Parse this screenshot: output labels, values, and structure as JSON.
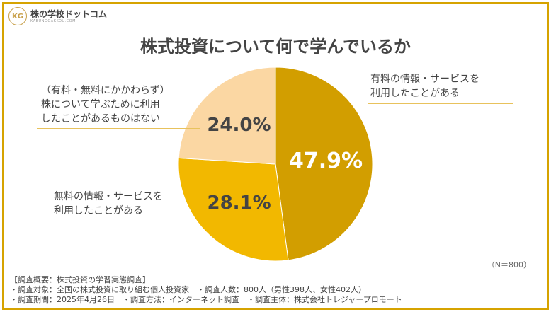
{
  "logo": {
    "mark": "KG",
    "name": "株の学校ドットコム",
    "url": "KABUNOGAKKOU.COM"
  },
  "title": "株式投資について何で学んでいるか",
  "chart_data": {
    "type": "pie",
    "title": "株式投資について何で学んでいるか",
    "slices": [
      {
        "label": "有料の情報・サービスを\n利用したことがある",
        "value": 47.9,
        "display": "47.9%",
        "color": "#d29e00",
        "text_color": "#ffffff"
      },
      {
        "label": "無料の情報・サービスを\n利用したことがある",
        "value": 28.1,
        "display": "28.1%",
        "color": "#f2b800",
        "text_color": "#444444"
      },
      {
        "label": "（有料・無料にかかわらず）\n株について学ぶために利用\nしたことがあるものはない",
        "value": 24.0,
        "display": "24.0%",
        "color": "#fbd7a3",
        "text_color": "#444444"
      }
    ],
    "start_angle_deg": 0,
    "direction": "clockwise"
  },
  "n_note": "（N＝800）",
  "footer": [
    "【調査概要：株式投資の学習実態調査】",
    "・調査対象：全国の株式投資に取り組む個人投資家　・調査人数：800人（男性398人、女性402人）",
    "・調査期間：2025年4月26日　・調査方法：インターネット調査　・調査主体：株式会社トレジャープロモート"
  ]
}
